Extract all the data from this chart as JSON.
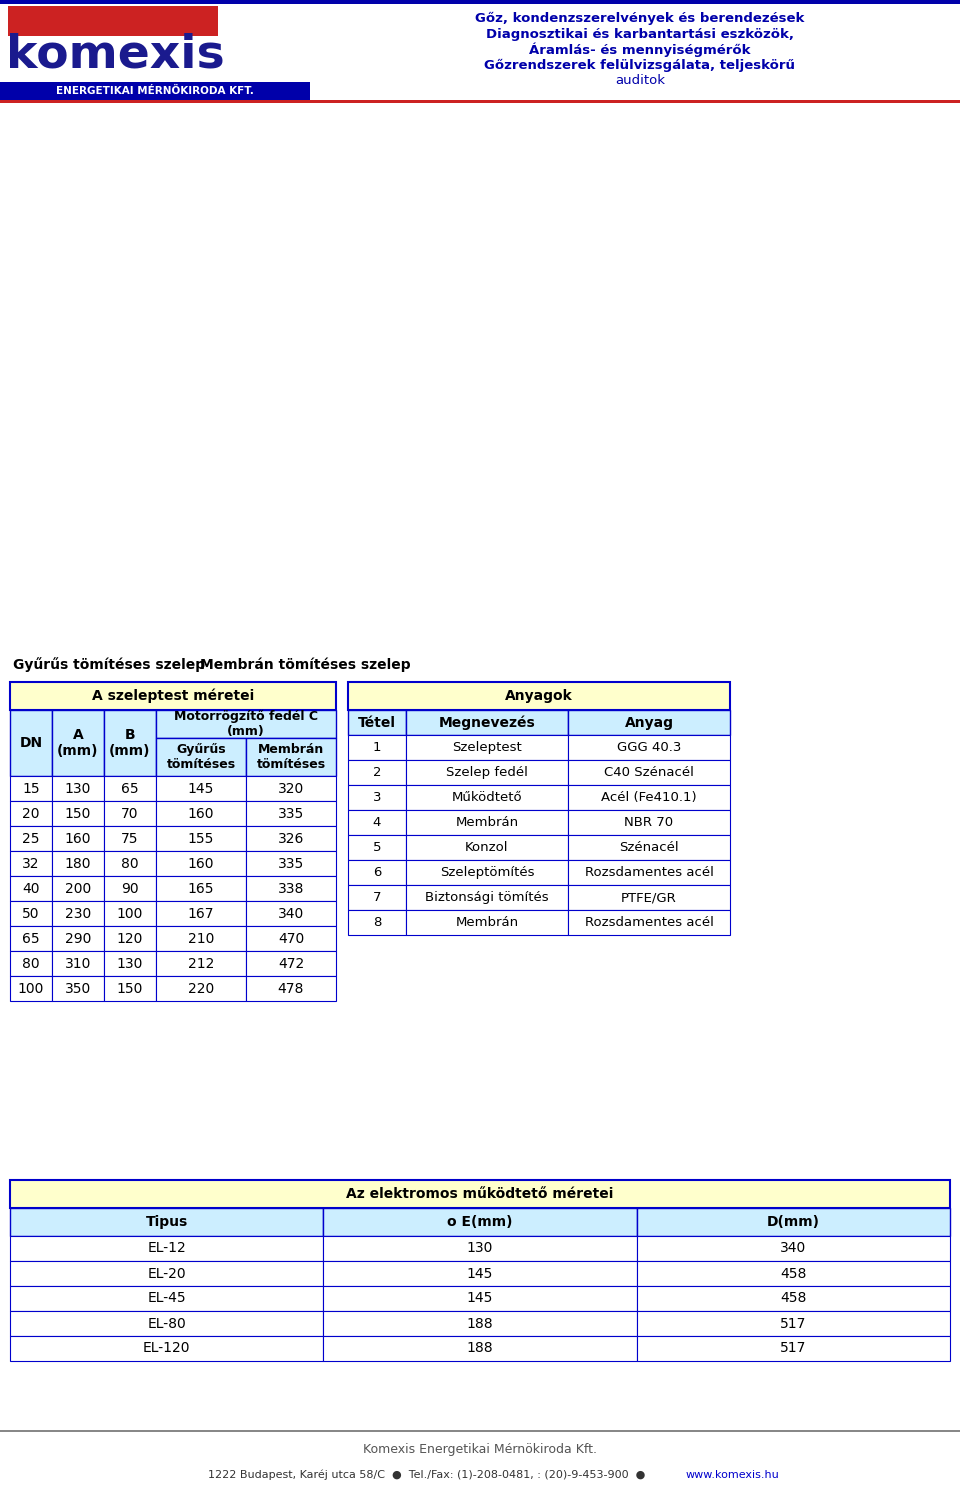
{
  "header_text_lines": [
    "Gőz, kondenzszerelvények és berendezések",
    "Diagnosztikai és karbantartási eszközök,",
    "Áramlás- és mennyiségmérők",
    "Gőzrendszerek felülvizsgálata, teljeskörű",
    "auditok"
  ],
  "caption_left": "Gyűrűs tömítéses szelep",
  "caption_right": "Membrán tömítéses szelep",
  "table1_title": "A szeleptest méretei",
  "table1_data": [
    [
      "15",
      "130",
      "65",
      "145",
      "320"
    ],
    [
      "20",
      "150",
      "70",
      "160",
      "335"
    ],
    [
      "25",
      "160",
      "75",
      "155",
      "326"
    ],
    [
      "32",
      "180",
      "80",
      "160",
      "335"
    ],
    [
      "40",
      "200",
      "90",
      "165",
      "338"
    ],
    [
      "50",
      "230",
      "100",
      "167",
      "340"
    ],
    [
      "65",
      "290",
      "120",
      "210",
      "470"
    ],
    [
      "80",
      "310",
      "130",
      "212",
      "472"
    ],
    [
      "100",
      "350",
      "150",
      "220",
      "478"
    ]
  ],
  "table2_title": "Anyagok",
  "table2_headers": [
    "Tétel",
    "Megnevezés",
    "Anyag"
  ],
  "table2_data": [
    [
      "1",
      "Szeleptest",
      "GGG 40.3"
    ],
    [
      "2",
      "Szelep fedél",
      "C40 Szénacél"
    ],
    [
      "3",
      "Működtető",
      "Acél (Fe410.1)"
    ],
    [
      "4",
      "Membrán",
      "NBR 70"
    ],
    [
      "5",
      "Konzol",
      "Szénacél"
    ],
    [
      "6",
      "Szeleptömítés",
      "Rozsdamentes acél"
    ],
    [
      "7",
      "Biztonsági tömítés",
      "PTFE/GR"
    ],
    [
      "8",
      "Membrán",
      "Rozsdamentes acél"
    ]
  ],
  "table3_title": "Az elektromos működtető méretei",
  "table3_headers": [
    "Tipus",
    "o E(mm)",
    "D(mm)"
  ],
  "table3_data": [
    [
      "EL-12",
      "130",
      "340"
    ],
    [
      "EL-20",
      "145",
      "458"
    ],
    [
      "EL-45",
      "145",
      "458"
    ],
    [
      "EL-80",
      "188",
      "517"
    ],
    [
      "EL-120",
      "188",
      "517"
    ]
  ],
  "footer_line1": "Komexis Energetikai Mérnökiroda Kft.",
  "footer_line2": "1222 Budapest, Karéj utca 58/C  ●  Tel./Fax: (1)-208-0481, : (20)-9-453-900  ●  www.komexis.hu",
  "bg_color": "#ffffff",
  "table_header_bg": "#ffffcc",
  "table_cell_bg": "#cceeff",
  "table_border_color": "#0000cc",
  "header_text_color": "#0000aa",
  "logo_color": "#1a1a8e",
  "accent_color": "#cc2222"
}
